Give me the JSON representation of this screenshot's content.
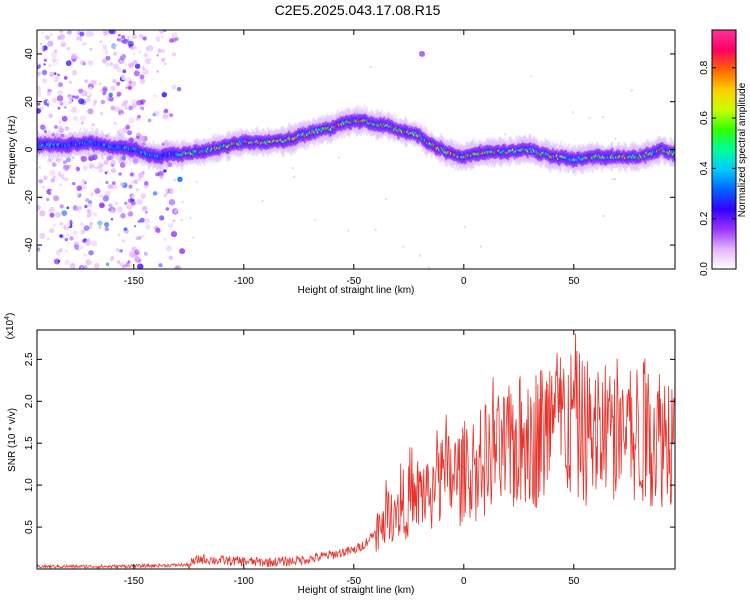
{
  "title": "C2E5.2025.043.17.08.R15",
  "chart_data": [
    {
      "type": "heatmap",
      "xlabel": "Height of straight line (km)",
      "ylabel": "Frequency (Hz)",
      "xlim": [
        -194,
        96
      ],
      "ylim": [
        -50,
        50
      ],
      "xticks": [
        -150,
        -100,
        -50,
        0,
        50
      ],
      "yticks": [
        -40,
        -20,
        0,
        20,
        40
      ],
      "colorbar": {
        "label": "Normalized spectral amplitude",
        "range": [
          0,
          0.95
        ],
        "ticks": [
          0.0,
          0.2,
          0.4,
          0.6,
          0.8
        ],
        "colors": [
          "#ffffff",
          "#e6b3ff",
          "#9933ff",
          "#3300ff",
          "#0066ff",
          "#00ccff",
          "#00ff99",
          "#33ff00",
          "#ccff00",
          "#ffcc00",
          "#ff6600",
          "#ff0066",
          "#ff3399"
        ]
      },
      "ridge": {
        "x": [
          -194,
          -180,
          -170,
          -160,
          -150,
          -140,
          -130,
          -120,
          -110,
          -100,
          -90,
          -80,
          -70,
          -60,
          -55,
          -50,
          -45,
          -40,
          -35,
          -30,
          -25,
          -20,
          -15,
          -10,
          -5,
          0,
          10,
          20,
          30,
          40,
          50,
          60,
          70,
          80,
          90,
          96
        ],
        "y": [
          2,
          2,
          3,
          1,
          0,
          -3,
          -2,
          -1,
          1,
          3,
          3,
          4,
          7,
          9,
          11,
          12,
          12,
          10,
          10,
          8,
          7,
          6,
          2,
          0,
          -2,
          -3,
          -1,
          -1,
          0,
          -3,
          -4,
          -3,
          -3,
          -3,
          0,
          -2
        ]
      }
    },
    {
      "type": "line",
      "xlabel": "Height of straight line (km)",
      "ylabel": "SNR (10 * v/v)",
      "y_multiplier": "(x10^4)",
      "xlim": [
        -194,
        96
      ],
      "ylim": [
        0,
        2.85
      ],
      "xticks": [
        -150,
        -100,
        -50,
        0,
        50
      ],
      "yticks": [
        0.5,
        1.0,
        1.5,
        2.0,
        2.5
      ],
      "series": [
        {
          "color": "#e8322b",
          "x": [
            -194,
            -180,
            -160,
            -140,
            -125,
            -120,
            -110,
            -100,
            -90,
            -80,
            -70,
            -60,
            -55,
            -50,
            -45,
            -40,
            -35,
            -30,
            -25,
            -20,
            -15,
            -10,
            -5,
            0,
            5,
            10,
            15,
            20,
            25,
            30,
            35,
            40,
            45,
            50,
            55,
            60,
            65,
            70,
            75,
            80,
            85,
            90,
            96
          ],
          "y": [
            0.03,
            0.03,
            0.03,
            0.04,
            0.05,
            0.12,
            0.1,
            0.09,
            0.08,
            0.09,
            0.12,
            0.17,
            0.2,
            0.22,
            0.3,
            0.45,
            0.7,
            0.75,
            0.8,
            0.9,
            0.95,
            1.05,
            1.1,
            1.1,
            1.2,
            1.3,
            1.35,
            1.4,
            1.5,
            1.55,
            1.6,
            1.7,
            1.75,
            1.7,
            1.65,
            1.6,
            1.65,
            1.7,
            1.7,
            1.6,
            1.65,
            1.6,
            1.65
          ]
        }
      ]
    }
  ]
}
